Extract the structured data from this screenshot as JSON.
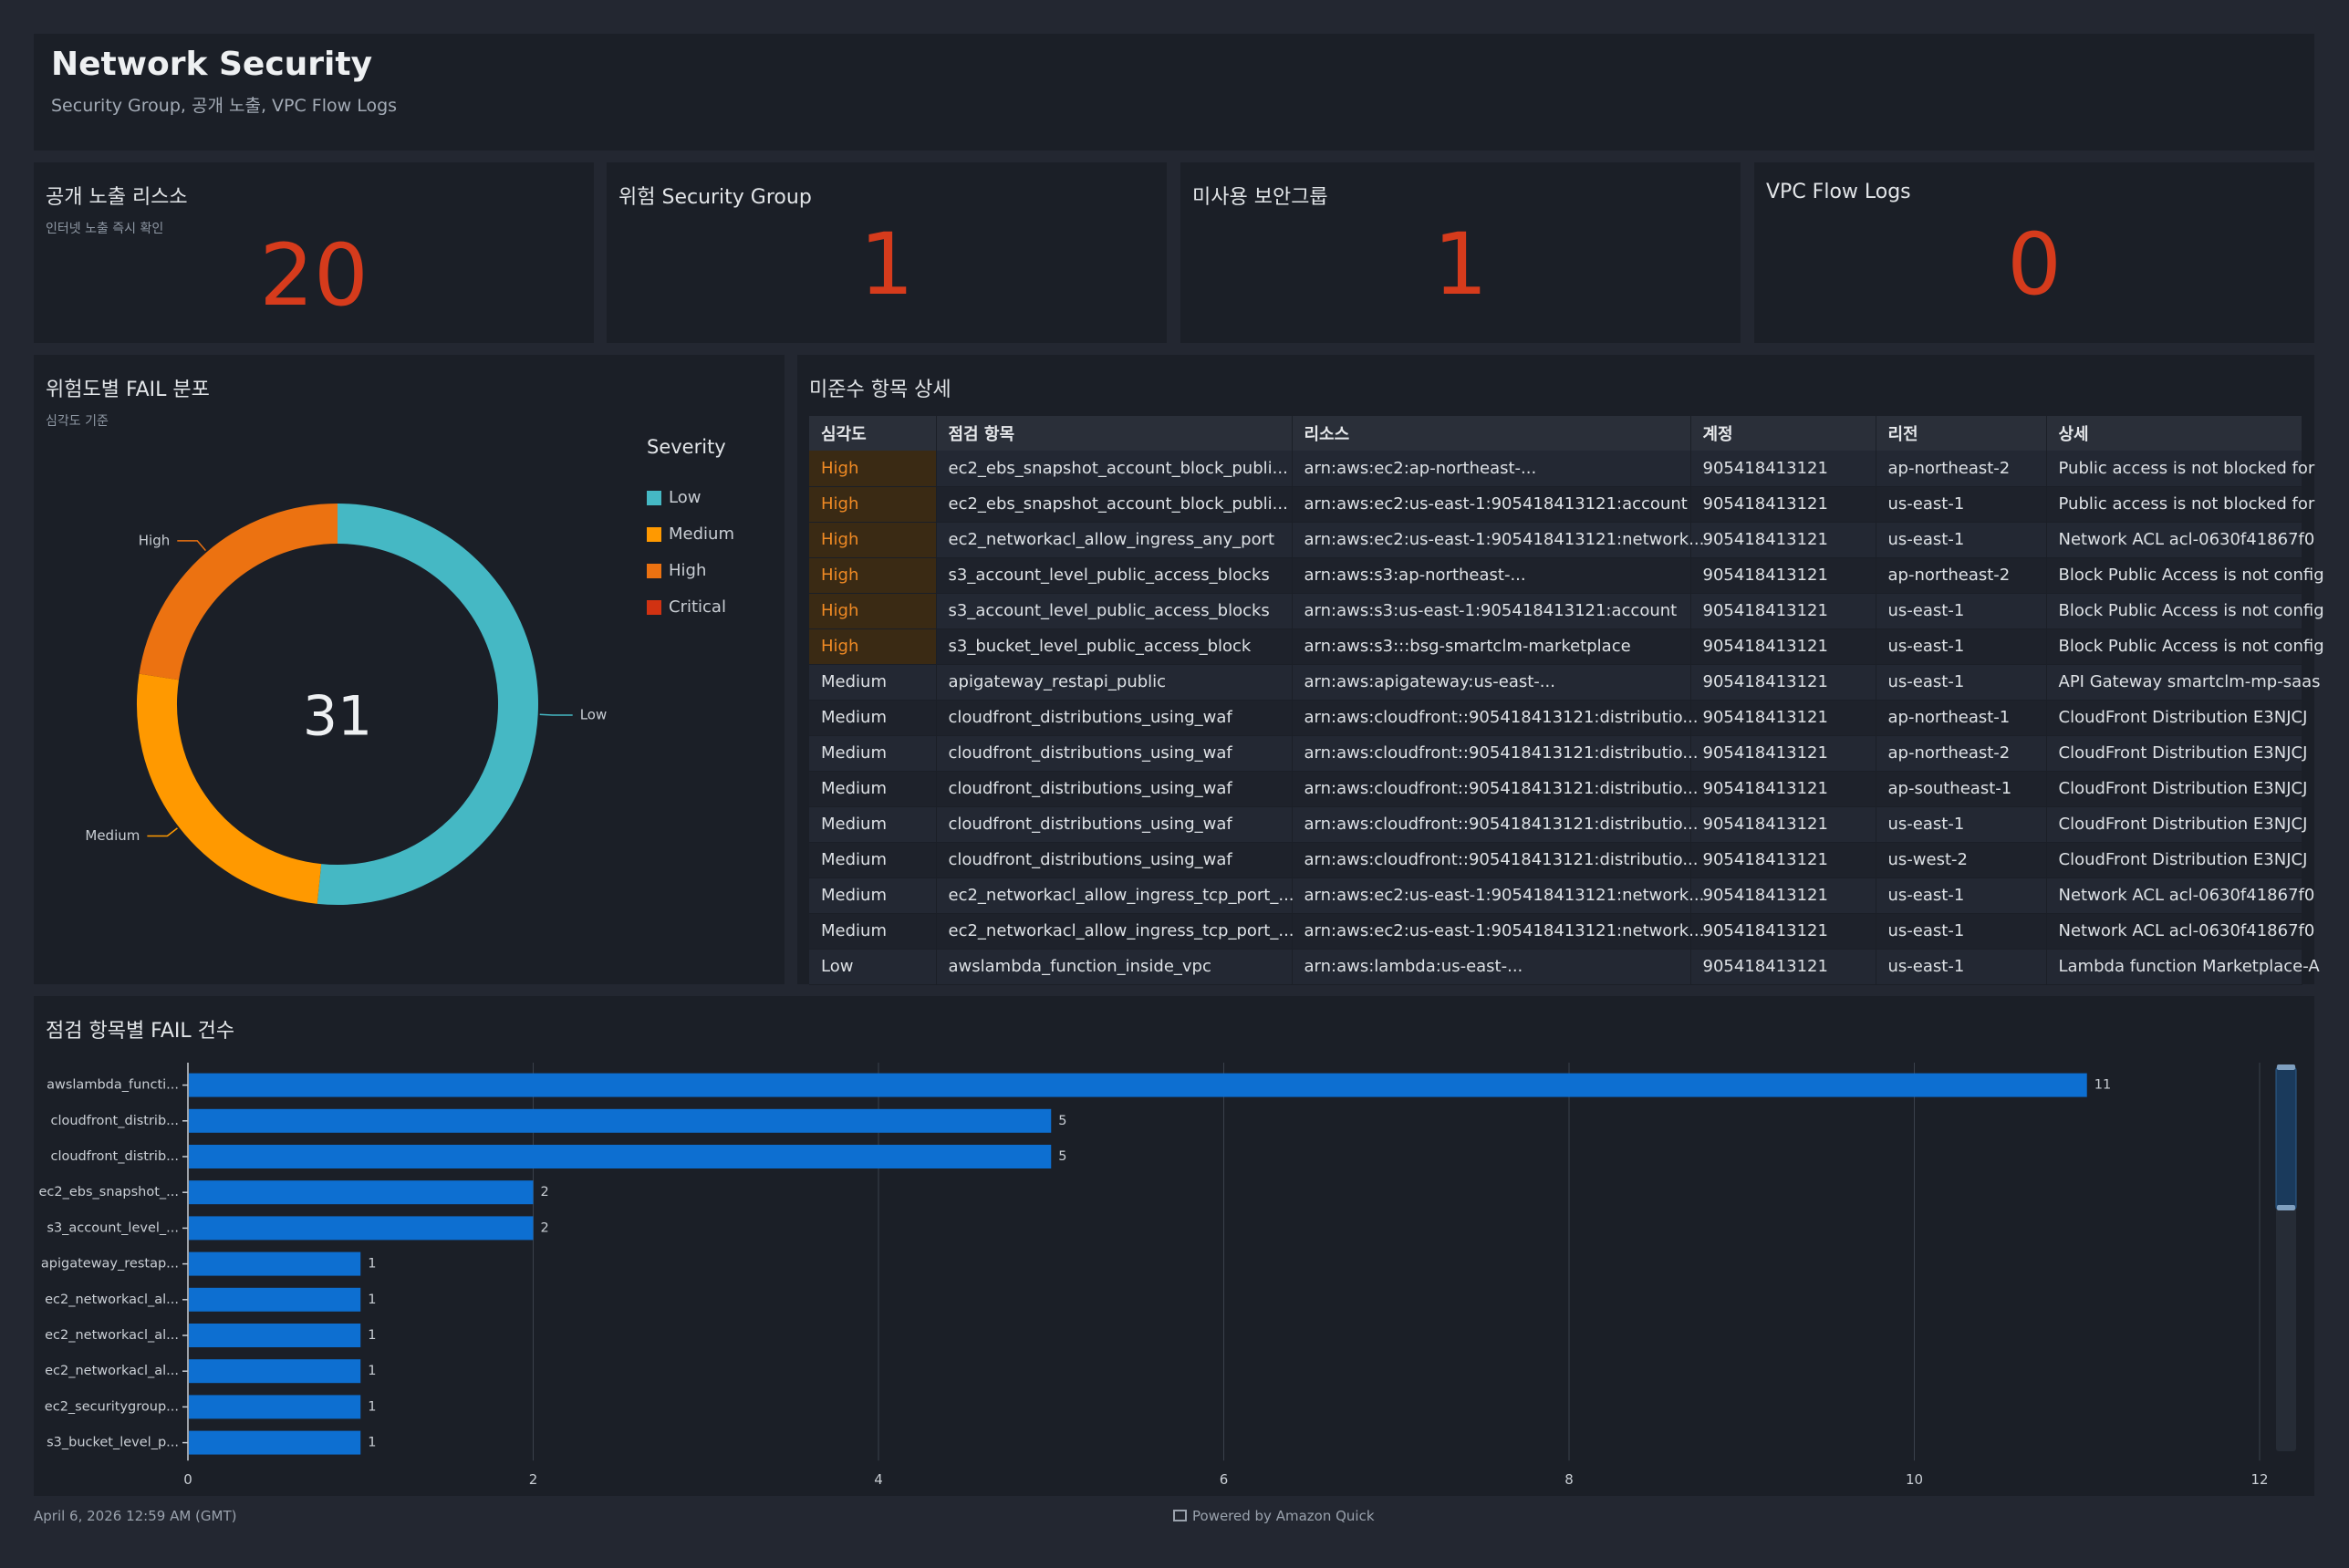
{
  "header": {
    "title": "Network Security",
    "subtitle": "Security Group, 공개 노출, VPC Flow Logs"
  },
  "kpis": [
    {
      "title": "공개 노출 리스소",
      "subtitle": "인터넷 노출 즉시 확인",
      "value": "20"
    },
    {
      "title": "위험 Security Group",
      "subtitle": "",
      "value": "1"
    },
    {
      "title": "미사용 보안그룹",
      "subtitle": "",
      "value": "1"
    },
    {
      "title": "VPC Flow Logs",
      "subtitle": "",
      "value": "0"
    }
  ],
  "donut_panel": {
    "title": "위험도별 FAIL 분포",
    "subtitle": "심각도 기준",
    "legend_title": "Severity",
    "total": "31"
  },
  "table_panel": {
    "title": "미준수 항목 상세",
    "columns": [
      "심각도",
      "점검 항목",
      "리소스",
      "계정",
      "리전",
      "상세"
    ],
    "rows": [
      [
        "High",
        "ec2_ebs_snapshot_account_block_publi...",
        "arn:aws:ec2:ap-northeast-...",
        "905418413121",
        "ap-northeast-2",
        "Public access is not blocked for"
      ],
      [
        "High",
        "ec2_ebs_snapshot_account_block_publi...",
        "arn:aws:ec2:us-east-1:905418413121:account",
        "905418413121",
        "us-east-1",
        "Public access is not blocked for"
      ],
      [
        "High",
        "ec2_networkacl_allow_ingress_any_port",
        "arn:aws:ec2:us-east-1:905418413121:network...",
        "905418413121",
        "us-east-1",
        "Network ACL acl-0630f41867f0"
      ],
      [
        "High",
        "s3_account_level_public_access_blocks",
        "arn:aws:s3:ap-northeast-...",
        "905418413121",
        "ap-northeast-2",
        "Block Public Access is not config"
      ],
      [
        "High",
        "s3_account_level_public_access_blocks",
        "arn:aws:s3:us-east-1:905418413121:account",
        "905418413121",
        "us-east-1",
        "Block Public Access is not config"
      ],
      [
        "High",
        "s3_bucket_level_public_access_block",
        "arn:aws:s3:::bsg-smartclm-marketplace",
        "905418413121",
        "us-east-1",
        "Block Public Access is not config"
      ],
      [
        "Medium",
        "apigateway_restapi_public",
        "arn:aws:apigateway:us-east-...",
        "905418413121",
        "us-east-1",
        "API Gateway smartclm-mp-saas"
      ],
      [
        "Medium",
        "cloudfront_distributions_using_waf",
        "arn:aws:cloudfront::905418413121:distributio...",
        "905418413121",
        "ap-northeast-1",
        "CloudFront Distribution E3NJCJ"
      ],
      [
        "Medium",
        "cloudfront_distributions_using_waf",
        "arn:aws:cloudfront::905418413121:distributio...",
        "905418413121",
        "ap-northeast-2",
        "CloudFront Distribution E3NJCJ"
      ],
      [
        "Medium",
        "cloudfront_distributions_using_waf",
        "arn:aws:cloudfront::905418413121:distributio...",
        "905418413121",
        "ap-southeast-1",
        "CloudFront Distribution E3NJCJ"
      ],
      [
        "Medium",
        "cloudfront_distributions_using_waf",
        "arn:aws:cloudfront::905418413121:distributio...",
        "905418413121",
        "us-east-1",
        "CloudFront Distribution E3NJCJ"
      ],
      [
        "Medium",
        "cloudfront_distributions_using_waf",
        "arn:aws:cloudfront::905418413121:distributio...",
        "905418413121",
        "us-west-2",
        "CloudFront Distribution E3NJCJ"
      ],
      [
        "Medium",
        "ec2_networkacl_allow_ingress_tcp_port_...",
        "arn:aws:ec2:us-east-1:905418413121:network...",
        "905418413121",
        "us-east-1",
        "Network ACL acl-0630f41867f0"
      ],
      [
        "Medium",
        "ec2_networkacl_allow_ingress_tcp_port_...",
        "arn:aws:ec2:us-east-1:905418413121:network...",
        "905418413121",
        "us-east-1",
        "Network ACL acl-0630f41867f0"
      ],
      [
        "Low",
        "awslambda_function_inside_vpc",
        "arn:aws:lambda:us-east-...",
        "905418413121",
        "us-east-1",
        "Lambda function Marketplace-A"
      ]
    ]
  },
  "bar_panel": {
    "title": "점검 항목별 FAIL 건수"
  },
  "footer": {
    "date": "April 6, 2026 12:59 AM (GMT)",
    "powered": "Powered by Amazon Quick"
  },
  "colors": {
    "low": "#45b8c4",
    "medium": "#ff9900",
    "high": "#ec7211",
    "critical": "#d13212",
    "bar": "#0d6fd1",
    "kpi_value": "#d63b1c"
  },
  "chart_data": [
    {
      "type": "pie",
      "title": "위험도별 FAIL 분포",
      "legend": [
        "Low",
        "Medium",
        "High",
        "Critical"
      ],
      "legend_placement": "right",
      "slices": [
        {
          "label": "Low",
          "value": 16
        },
        {
          "label": "Medium",
          "value": 8
        },
        {
          "label": "High",
          "value": 7
        },
        {
          "label": "Critical",
          "value": 0
        }
      ],
      "center_label": "31"
    },
    {
      "type": "bar",
      "orientation": "horizontal",
      "title": "점검 항목별 FAIL 건수",
      "categories": [
        "awslambda_functi...",
        "cloudfront_distrib...",
        "cloudfront_distrib...",
        "ec2_ebs_snapshot_...",
        "s3_account_level_...",
        "apigateway_restap...",
        "ec2_networkacl_al...",
        "ec2_networkacl_al...",
        "ec2_networkacl_al...",
        "ec2_securitygroup...",
        "s3_bucket_level_p..."
      ],
      "values": [
        11,
        5,
        5,
        2,
        2,
        1,
        1,
        1,
        1,
        1,
        1
      ],
      "xlim": [
        0,
        12
      ],
      "xticks": [
        0,
        2,
        4,
        6,
        8,
        10,
        12
      ],
      "grid": true
    }
  ]
}
